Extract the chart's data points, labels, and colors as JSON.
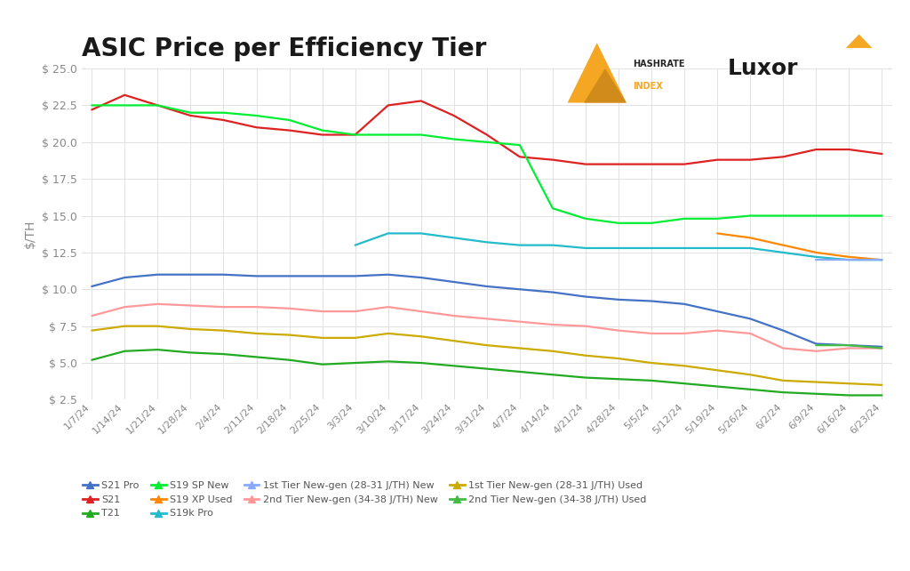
{
  "title": "ASIC Price per Efficiency Tier",
  "ylabel": "$/TH",
  "ylim": [
    2.5,
    25.0
  ],
  "yticks": [
    2.5,
    5.0,
    7.5,
    10.0,
    12.5,
    15.0,
    17.5,
    20.0,
    22.5,
    25.0
  ],
  "dates": [
    "1/7/24",
    "1/14/24",
    "1/21/24",
    "1/28/24",
    "2/4/24",
    "2/11/24",
    "2/18/24",
    "2/25/24",
    "3/3/24",
    "3/10/24",
    "3/17/24",
    "3/24/24",
    "3/31/24",
    "4/7/24",
    "4/14/24",
    "4/21/24",
    "4/28/24",
    "5/5/24",
    "5/12/24",
    "5/19/24",
    "5/26/24",
    "6/2/24",
    "6/9/24",
    "6/16/24",
    "6/23/24"
  ],
  "series": [
    {
      "name": "S21 Pro",
      "color": "#4472C4",
      "data": [
        10.2,
        10.8,
        11.0,
        11.0,
        11.0,
        10.9,
        10.9,
        10.9,
        10.9,
        11.0,
        10.8,
        10.5,
        10.2,
        10.0,
        9.8,
        9.5,
        9.3,
        9.2,
        9.0,
        8.5,
        8.0,
        7.2,
        6.3,
        6.2,
        6.1
      ]
    },
    {
      "name": "S21",
      "color": "#E03030",
      "data": [
        22.2,
        23.2,
        22.5,
        21.8,
        21.5,
        21.0,
        20.8,
        20.5,
        20.5,
        22.5,
        22.8,
        21.8,
        20.5,
        19.0,
        18.8,
        18.5,
        18.5,
        18.5,
        18.5,
        18.8,
        18.8,
        19.0,
        19.5,
        19.5,
        19.2
      ]
    },
    {
      "name": "T21",
      "color": "#33AA33",
      "data": [
        5.2,
        5.8,
        5.9,
        5.7,
        5.6,
        5.4,
        5.2,
        4.9,
        5.0,
        5.1,
        5.0,
        4.8,
        4.6,
        4.4,
        4.2,
        4.0,
        3.9,
        3.8,
        3.6,
        3.4,
        3.2,
        3.0,
        2.9,
        2.8,
        2.8
      ]
    },
    {
      "name": "S19 SP New",
      "color": "#00DD22",
      "data": [
        22.5,
        22.5,
        22.5,
        22.0,
        22.0,
        21.8,
        21.5,
        20.8,
        20.5,
        20.5,
        20.5,
        20.2,
        20.0,
        19.8,
        14.5,
        14.8,
        14.5,
        14.5,
        14.8,
        14.8,
        15.0,
        15.0,
        15.0,
        15.0,
        15.0
      ]
    },
    {
      "name": "S19 XP Used",
      "color": "#FF8800",
      "data": [
        null,
        null,
        null,
        null,
        null,
        null,
        null,
        null,
        null,
        null,
        null,
        null,
        null,
        null,
        null,
        null,
        null,
        null,
        null,
        13.8,
        13.5,
        13.0,
        12.5,
        12.2,
        12.0
      ]
    },
    {
      "name": "S19k Pro",
      "color": "#22BBCC",
      "data": [
        null,
        null,
        null,
        null,
        null,
        null,
        null,
        null,
        13.0,
        13.8,
        13.8,
        13.5,
        13.2,
        13.0,
        13.0,
        12.8,
        12.8,
        12.8,
        12.8,
        12.8,
        12.8,
        12.5,
        12.2,
        12.0,
        12.0
      ]
    },
    {
      "name": "1st Tier New-gen (28-31 J/TH) New",
      "color": "#88AAEE",
      "data": [
        null,
        null,
        null,
        null,
        null,
        null,
        null,
        null,
        null,
        null,
        null,
        null,
        null,
        null,
        null,
        null,
        null,
        null,
        null,
        null,
        null,
        null,
        19.5,
        19.5,
        19.2
      ]
    },
    {
      "name": "2nd Tier New-gen (34-38 J/TH) New",
      "color": "#FF9999",
      "data": [
        8.2,
        8.8,
        9.0,
        8.9,
        8.8,
        8.8,
        8.7,
        8.5,
        8.5,
        8.8,
        8.5,
        8.2,
        8.0,
        7.8,
        7.6,
        7.5,
        7.2,
        7.0,
        7.0,
        7.2,
        7.0,
        6.0,
        5.5,
        6.0,
        6.0
      ]
    },
    {
      "name": "1st Tier New-gen (28-31 J/TH) Used",
      "color": "#CCAA00",
      "data": [
        7.2,
        7.5,
        7.5,
        7.3,
        7.2,
        7.0,
        6.9,
        6.7,
        6.7,
        7.0,
        6.8,
        6.5,
        6.2,
        6.0,
        5.8,
        5.5,
        5.3,
        5.0,
        4.8,
        4.5,
        4.2,
        3.8,
        3.7,
        3.6,
        3.5
      ]
    },
    {
      "name": "2nd Tier New-gen (34-38 J/TH) Used",
      "color": "#55CC55",
      "data": [
        null,
        null,
        null,
        null,
        null,
        null,
        null,
        null,
        null,
        null,
        null,
        null,
        null,
        null,
        null,
        null,
        null,
        null,
        null,
        null,
        null,
        null,
        6.2,
        6.2,
        6.0
      ]
    }
  ],
  "background_color": "#FFFFFF",
  "grid_color": "#DDDDDD"
}
